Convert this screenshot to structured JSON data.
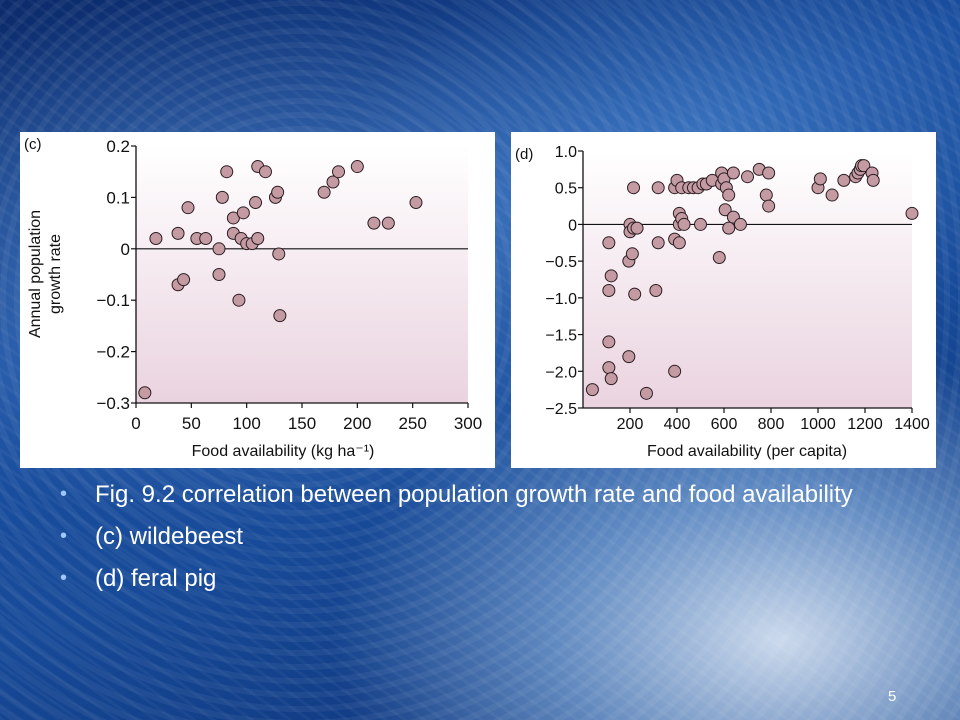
{
  "chart_data": [
    {
      "type": "scatter",
      "panel_label": "(c)",
      "xlabel": "Food availability (kg ha⁻¹)",
      "ylabel": "Annual population growth rate",
      "xlim": [
        0,
        300
      ],
      "ylim": [
        -0.3,
        0.2
      ],
      "xticks": [
        0,
        50,
        100,
        150,
        200,
        250,
        300
      ],
      "yticks": [
        0.2,
        0.1,
        0,
        -0.1,
        -0.2,
        -0.3
      ],
      "ytick_labels": [
        "0.2",
        "0.1",
        "0",
        "−0.1",
        "−0.2",
        "−0.3"
      ],
      "zero_line": true,
      "points": [
        [
          8,
          -0.28
        ],
        [
          18,
          0.02
        ],
        [
          38,
          0.03
        ],
        [
          38,
          -0.07
        ],
        [
          43,
          -0.06
        ],
        [
          47,
          0.08
        ],
        [
          55,
          0.02
        ],
        [
          63,
          0.02
        ],
        [
          75,
          -0.05
        ],
        [
          75,
          0.0
        ],
        [
          78,
          0.1
        ],
        [
          82,
          0.15
        ],
        [
          88,
          0.06
        ],
        [
          88,
          0.03
        ],
        [
          93,
          -0.1
        ],
        [
          95,
          0.02
        ],
        [
          97,
          0.07
        ],
        [
          100,
          0.01
        ],
        [
          105,
          0.01
        ],
        [
          108,
          0.09
        ],
        [
          110,
          0.02
        ],
        [
          110,
          0.16
        ],
        [
          117,
          0.15
        ],
        [
          126,
          0.1
        ],
        [
          128,
          0.11
        ],
        [
          129,
          -0.01
        ],
        [
          130,
          -0.13
        ],
        [
          170,
          0.11
        ],
        [
          178,
          0.13
        ],
        [
          183,
          0.15
        ],
        [
          200,
          0.16
        ],
        [
          215,
          0.05
        ],
        [
          228,
          0.05
        ],
        [
          253,
          0.09
        ]
      ]
    },
    {
      "type": "scatter",
      "panel_label": "(d)",
      "xlabel": "Food availability (per capita)",
      "ylabel": "",
      "xlim": [
        0,
        1400
      ],
      "ylim": [
        -2.5,
        1.0
      ],
      "xticks": [
        200,
        400,
        600,
        800,
        1000,
        1200,
        1400
      ],
      "yticks": [
        1.0,
        0.5,
        0,
        -0.5,
        -1.0,
        -1.5,
        -2.0,
        -2.5
      ],
      "ytick_labels": [
        "1.0",
        "0.5",
        "0",
        "−0.5",
        "−1.0",
        "−1.5",
        "−2.0",
        "−2.5"
      ],
      "zero_line": true,
      "points": [
        [
          40,
          -2.25
        ],
        [
          110,
          -0.25
        ],
        [
          110,
          -0.9
        ],
        [
          110,
          -1.6
        ],
        [
          110,
          -1.95
        ],
        [
          120,
          -0.7
        ],
        [
          120,
          -2.1
        ],
        [
          195,
          -0.5
        ],
        [
          195,
          -1.8
        ],
        [
          200,
          0.0
        ],
        [
          200,
          -0.1
        ],
        [
          210,
          -0.4
        ],
        [
          215,
          0.5
        ],
        [
          215,
          -0.05
        ],
        [
          220,
          -0.95
        ],
        [
          230,
          -0.05
        ],
        [
          270,
          -2.3
        ],
        [
          310,
          -0.9
        ],
        [
          320,
          -0.25
        ],
        [
          320,
          0.5
        ],
        [
          390,
          -2.0
        ],
        [
          390,
          -0.2
        ],
        [
          390,
          0.5
        ],
        [
          400,
          0.6
        ],
        [
          410,
          0.0
        ],
        [
          410,
          -0.25
        ],
        [
          410,
          0.15
        ],
        [
          420,
          0.5
        ],
        [
          420,
          0.08
        ],
        [
          430,
          0.0
        ],
        [
          450,
          0.5
        ],
        [
          470,
          0.5
        ],
        [
          490,
          0.5
        ],
        [
          500,
          0.0
        ],
        [
          510,
          0.55
        ],
        [
          525,
          0.55
        ],
        [
          550,
          0.6
        ],
        [
          580,
          -0.45
        ],
        [
          590,
          0.7
        ],
        [
          590,
          0.55
        ],
        [
          600,
          0.62
        ],
        [
          605,
          0.2
        ],
        [
          610,
          0.5
        ],
        [
          620,
          0.4
        ],
        [
          620,
          -0.05
        ],
        [
          640,
          0.7
        ],
        [
          640,
          0.1
        ],
        [
          670,
          0.0
        ],
        [
          700,
          0.65
        ],
        [
          750,
          0.75
        ],
        [
          780,
          0.4
        ],
        [
          790,
          0.7
        ],
        [
          790,
          0.25
        ],
        [
          1000,
          0.5
        ],
        [
          1010,
          0.62
        ],
        [
          1060,
          0.4
        ],
        [
          1110,
          0.6
        ],
        [
          1160,
          0.65
        ],
        [
          1170,
          0.7
        ],
        [
          1180,
          0.75
        ],
        [
          1185,
          0.8
        ],
        [
          1195,
          0.8
        ],
        [
          1230,
          0.7
        ],
        [
          1235,
          0.6
        ],
        [
          1400,
          0.15
        ]
      ]
    }
  ],
  "colors": {
    "marker_fill": "#c49aa3",
    "marker_stroke": "#2a1d22",
    "plot_gradient_top": "#ffffff",
    "plot_gradient_bottom": "#ead3df",
    "bullet_dot": "#9fc7ff"
  },
  "bullets": [
    "Fig. 9.2 correlation between population growth rate and food availability",
    "(c) wildebeest",
    "(d) feral pig"
  ],
  "page_number": "5"
}
